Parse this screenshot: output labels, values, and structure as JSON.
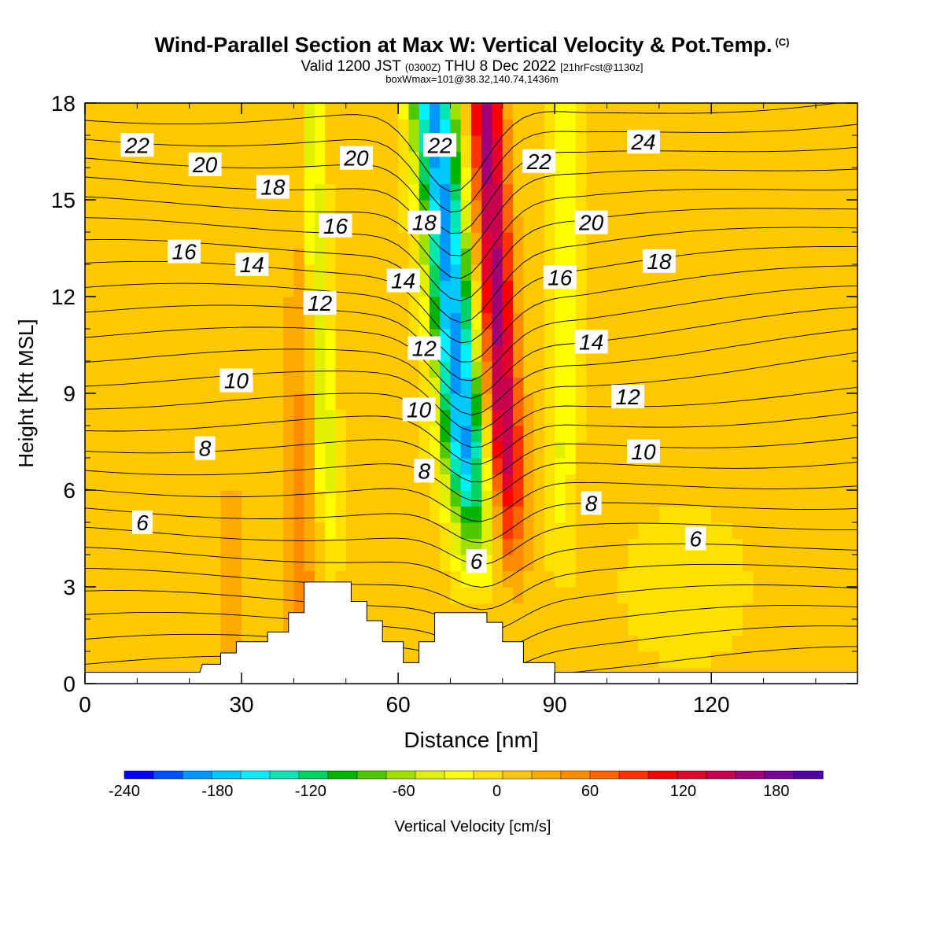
{
  "header": {
    "title": "Wind-Parallel Section at Max W: Vertical Velocity & Pot.Temp.",
    "copyright": "(C)",
    "valid_prefix": "Valid 1200 JST",
    "valid_utc": "(0300Z)",
    "valid_date": "THU 8 Dec 2022",
    "forecast": "[21hrFcst@1130z]",
    "box_info": "boxWmax=101@38.32,140.74,1436m"
  },
  "colorbar": {
    "label": "Vertical Velocity [cm/s]",
    "tick_labels": [
      "-240",
      "-180",
      "-120",
      "-60",
      "0",
      "60",
      "120",
      "180"
    ],
    "colors": [
      "#0000ff",
      "#0050ff",
      "#0096ff",
      "#00c8ff",
      "#00f0ff",
      "#00e6b4",
      "#00d264",
      "#00b400",
      "#50c800",
      "#a0e100",
      "#e1f000",
      "#ffff00",
      "#ffe100",
      "#ffc800",
      "#ffaa00",
      "#ff8c00",
      "#ff6400",
      "#ff3200",
      "#ff0000",
      "#e6002d",
      "#c80050",
      "#a00078",
      "#780096",
      "#5000a0"
    ]
  },
  "chart_data": {
    "type": "heatmap",
    "title": "Wind-Parallel Section at Max W: Vertical Velocity & Pot.Temp.",
    "xlabel": "Distance [nm]",
    "ylabel": "Height [Kft MSL]",
    "xlim": [
      0,
      148
    ],
    "ylim": [
      0,
      18
    ],
    "x_ticks": [
      0,
      30,
      60,
      90,
      120
    ],
    "y_ticks": [
      0,
      3,
      6,
      9,
      12,
      15,
      18
    ],
    "x_tick_labels": [
      "0",
      "30",
      "60",
      "90",
      "120"
    ],
    "y_tick_labels": [
      "0",
      "3",
      "6",
      "9",
      "12",
      "15",
      "18"
    ],
    "fill_variable": "Vertical Velocity [cm/s]",
    "fill_range": [
      -240,
      210
    ],
    "contour_variable": "Potential temperature",
    "contour_labels": [
      {
        "text": "22",
        "x": 10,
        "y": 16.7
      },
      {
        "text": "20",
        "x": 23,
        "y": 16.1
      },
      {
        "text": "18",
        "x": 36,
        "y": 15.4
      },
      {
        "text": "16",
        "x": 19,
        "y": 13.4
      },
      {
        "text": "14",
        "x": 32,
        "y": 13.0
      },
      {
        "text": "20",
        "x": 52,
        "y": 16.3
      },
      {
        "text": "16",
        "x": 48,
        "y": 14.2
      },
      {
        "text": "12",
        "x": 45,
        "y": 11.8
      },
      {
        "text": "10",
        "x": 29,
        "y": 9.4
      },
      {
        "text": "8",
        "x": 23,
        "y": 7.3
      },
      {
        "text": "6",
        "x": 11,
        "y": 5.0
      },
      {
        "text": "22",
        "x": 68,
        "y": 16.7
      },
      {
        "text": "18",
        "x": 65,
        "y": 14.3
      },
      {
        "text": "14",
        "x": 61,
        "y": 12.5
      },
      {
        "text": "12",
        "x": 65,
        "y": 10.4
      },
      {
        "text": "10",
        "x": 64,
        "y": 8.5
      },
      {
        "text": "8",
        "x": 65,
        "y": 6.6
      },
      {
        "text": "6",
        "x": 75,
        "y": 3.8
      },
      {
        "text": "22",
        "x": 87,
        "y": 16.2
      },
      {
        "text": "20",
        "x": 97,
        "y": 14.3
      },
      {
        "text": "16",
        "x": 91,
        "y": 12.6
      },
      {
        "text": "14",
        "x": 97,
        "y": 10.6
      },
      {
        "text": "12",
        "x": 104,
        "y": 8.9
      },
      {
        "text": "10",
        "x": 107,
        "y": 7.2
      },
      {
        "text": "8",
        "x": 97,
        "y": 5.6
      },
      {
        "text": "6",
        "x": 117,
        "y": 4.5
      },
      {
        "text": "24",
        "x": 107,
        "y": 16.8
      },
      {
        "text": "18",
        "x": 110,
        "y": 13.1
      }
    ],
    "terrain_profile": [
      [
        0,
        0.35
      ],
      [
        22,
        0.35
      ],
      [
        22.5,
        0.6
      ],
      [
        26,
        0.6
      ],
      [
        26,
        0.95
      ],
      [
        29,
        0.95
      ],
      [
        29,
        1.3
      ],
      [
        35,
        1.3
      ],
      [
        35,
        1.6
      ],
      [
        39,
        1.6
      ],
      [
        39,
        2.2
      ],
      [
        42,
        2.2
      ],
      [
        42,
        3.15
      ],
      [
        51,
        3.15
      ],
      [
        51,
        2.55
      ],
      [
        54,
        2.55
      ],
      [
        54,
        1.95
      ],
      [
        57,
        1.95
      ],
      [
        57,
        1.3
      ],
      [
        61,
        1.3
      ],
      [
        61,
        0.65
      ],
      [
        64,
        0.65
      ],
      [
        64,
        1.3
      ],
      [
        67,
        1.3
      ],
      [
        67,
        2.2
      ],
      [
        77,
        2.2
      ],
      [
        77,
        1.9
      ],
      [
        80,
        1.9
      ],
      [
        80,
        1.3
      ],
      [
        84,
        1.3
      ],
      [
        84,
        0.65
      ],
      [
        90,
        0.65
      ],
      [
        90,
        0.35
      ],
      [
        148,
        0.35
      ]
    ]
  }
}
